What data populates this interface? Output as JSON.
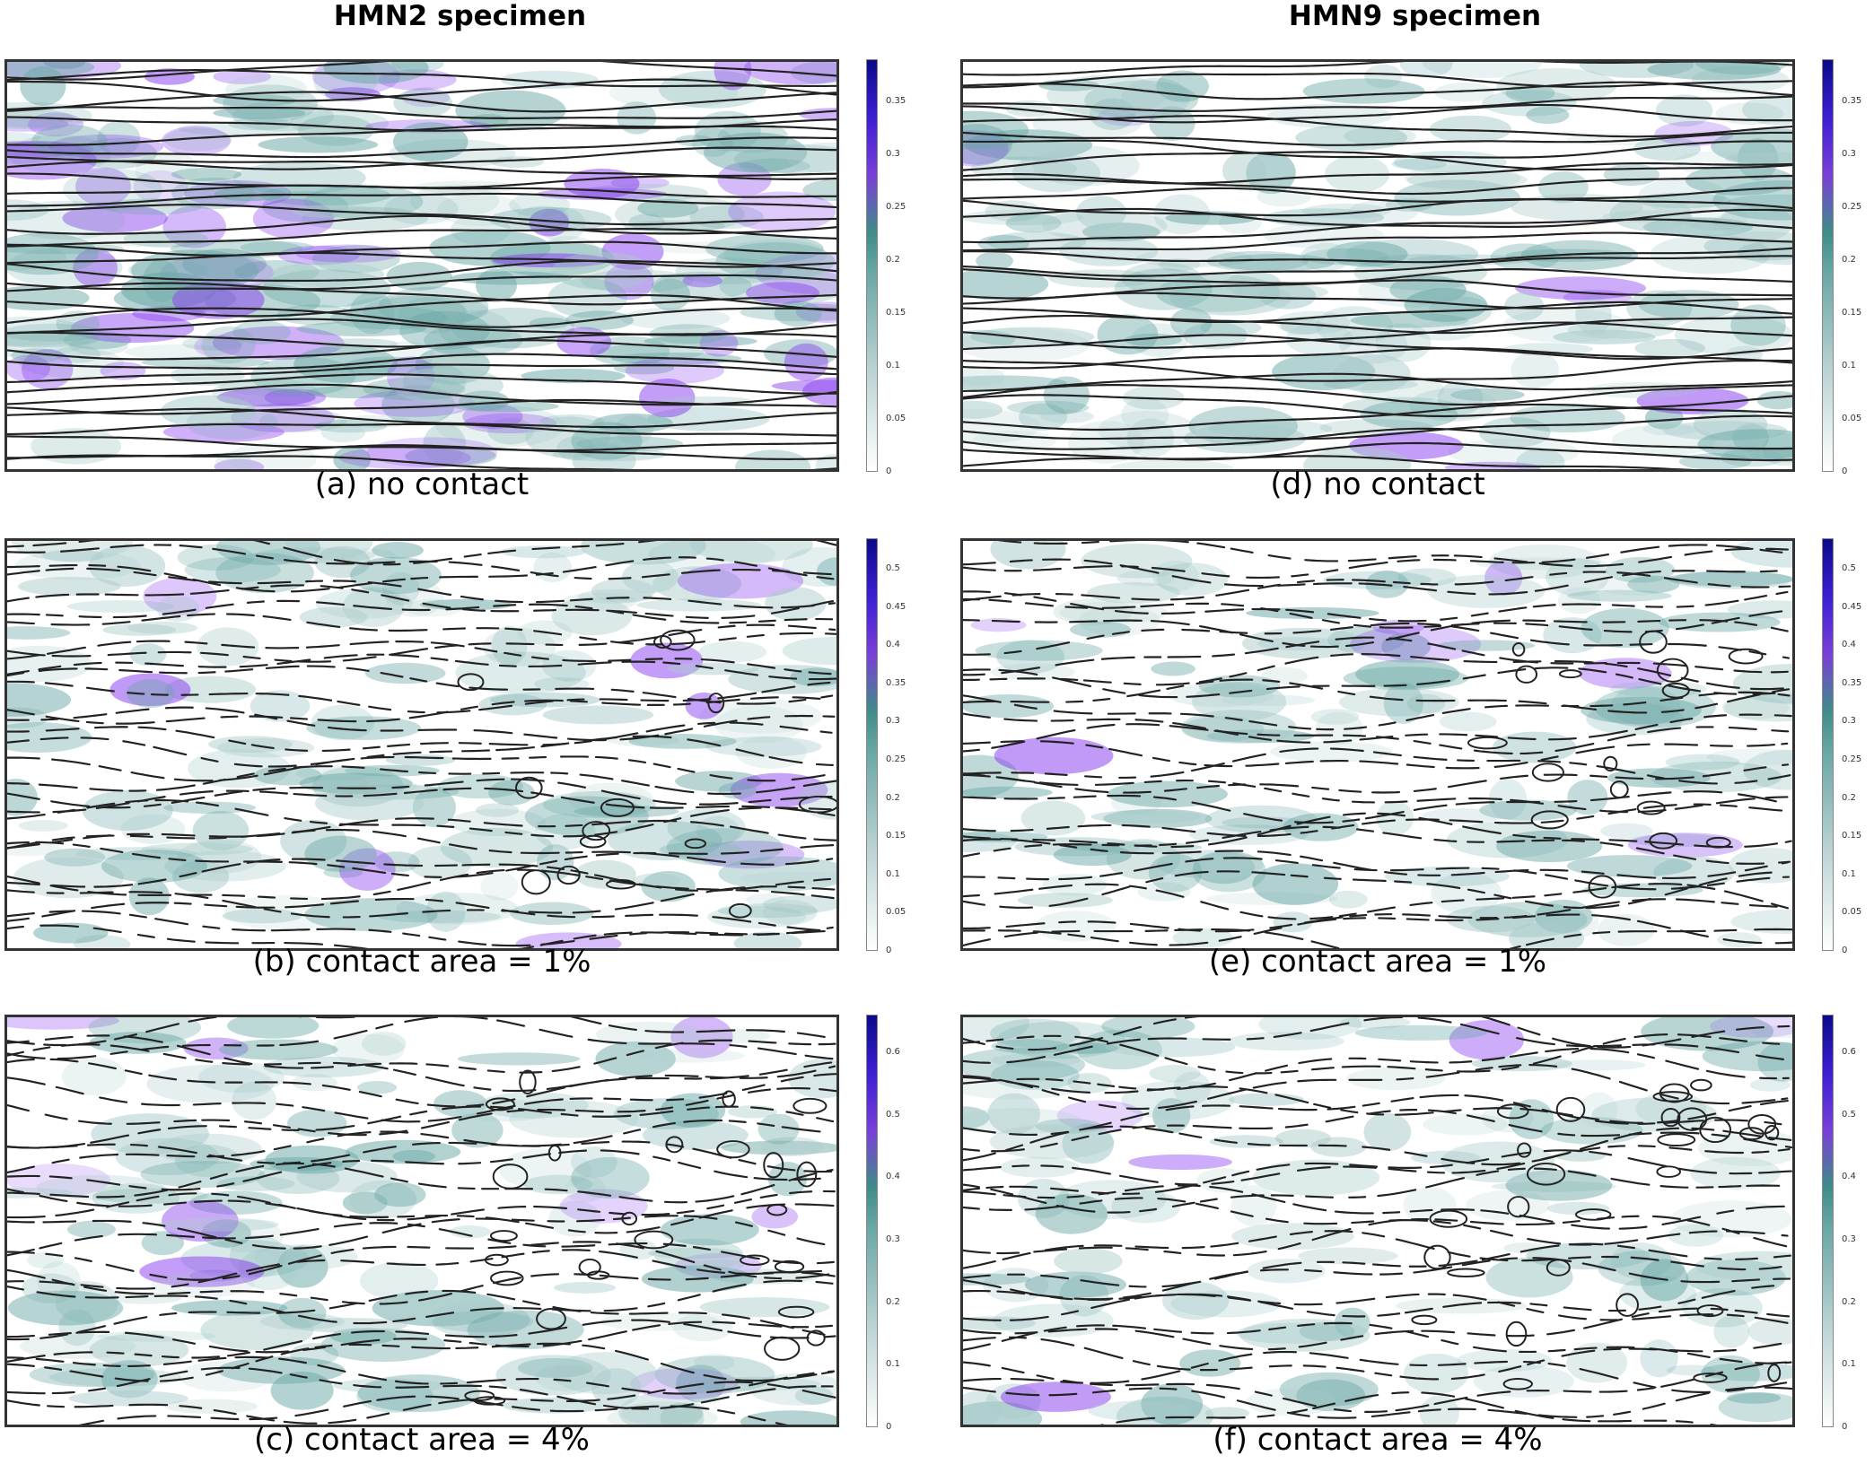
{
  "figure": {
    "column_titles": [
      "HMN2 specimen",
      "HMN9 specimen"
    ],
    "panels": [
      {
        "id": "a",
        "caption": "(a) no contact",
        "colorbar_ticks": [
          "0.35",
          "0.3",
          "0.25",
          "0.2",
          "0.15",
          "0.1",
          "0.05",
          "0"
        ],
        "cbar_max": 0.39,
        "density": 0.85,
        "purple": 0.35,
        "turbulence": 0.15,
        "loops": 0,
        "seed": 11
      },
      {
        "id": "b",
        "caption": "(b) contact area = 1%",
        "colorbar_ticks": [
          "0.5",
          "0.45",
          "0.4",
          "0.35",
          "0.3",
          "0.25",
          "0.2",
          "0.15",
          "0.1",
          "0.05",
          "0"
        ],
        "cbar_max": 0.54,
        "density": 0.45,
        "purple": 0.06,
        "turbulence": 0.55,
        "loops": 14,
        "seed": 23
      },
      {
        "id": "c",
        "caption": "(c) contact area = 4%",
        "colorbar_ticks": [
          "0.6",
          "0.5",
          "0.4",
          "0.3",
          "0.2",
          "0.1",
          "0"
        ],
        "cbar_max": 0.66,
        "density": 0.4,
        "purple": 0.05,
        "turbulence": 0.75,
        "loops": 26,
        "seed": 37
      },
      {
        "id": "d",
        "caption": "(d) no contact",
        "colorbar_ticks": [
          "0.35",
          "0.3",
          "0.25",
          "0.2",
          "0.15",
          "0.1",
          "0.05",
          "0"
        ],
        "cbar_max": 0.39,
        "density": 0.6,
        "purple": 0.05,
        "turbulence": 0.2,
        "loops": 0,
        "seed": 41
      },
      {
        "id": "e",
        "caption": "(e) contact area = 1%",
        "colorbar_ticks": [
          "0.5",
          "0.45",
          "0.4",
          "0.35",
          "0.3",
          "0.25",
          "0.2",
          "0.15",
          "0.1",
          "0.05",
          "0"
        ],
        "cbar_max": 0.54,
        "density": 0.35,
        "purple": 0.04,
        "turbulence": 0.6,
        "loops": 16,
        "seed": 53
      },
      {
        "id": "f",
        "caption": "(f) contact area = 4%",
        "colorbar_ticks": [
          "0.6",
          "0.5",
          "0.4",
          "0.3",
          "0.2",
          "0.1",
          "0"
        ],
        "cbar_max": 0.66,
        "density": 0.32,
        "purple": 0.05,
        "turbulence": 0.8,
        "loops": 28,
        "seed": 67
      }
    ],
    "colors": {
      "low": "#ffffff",
      "mid": "#6aa8a6",
      "high_purple": "#8a3ff0",
      "max": "#0a0a8a",
      "streamline": "#222222"
    }
  }
}
